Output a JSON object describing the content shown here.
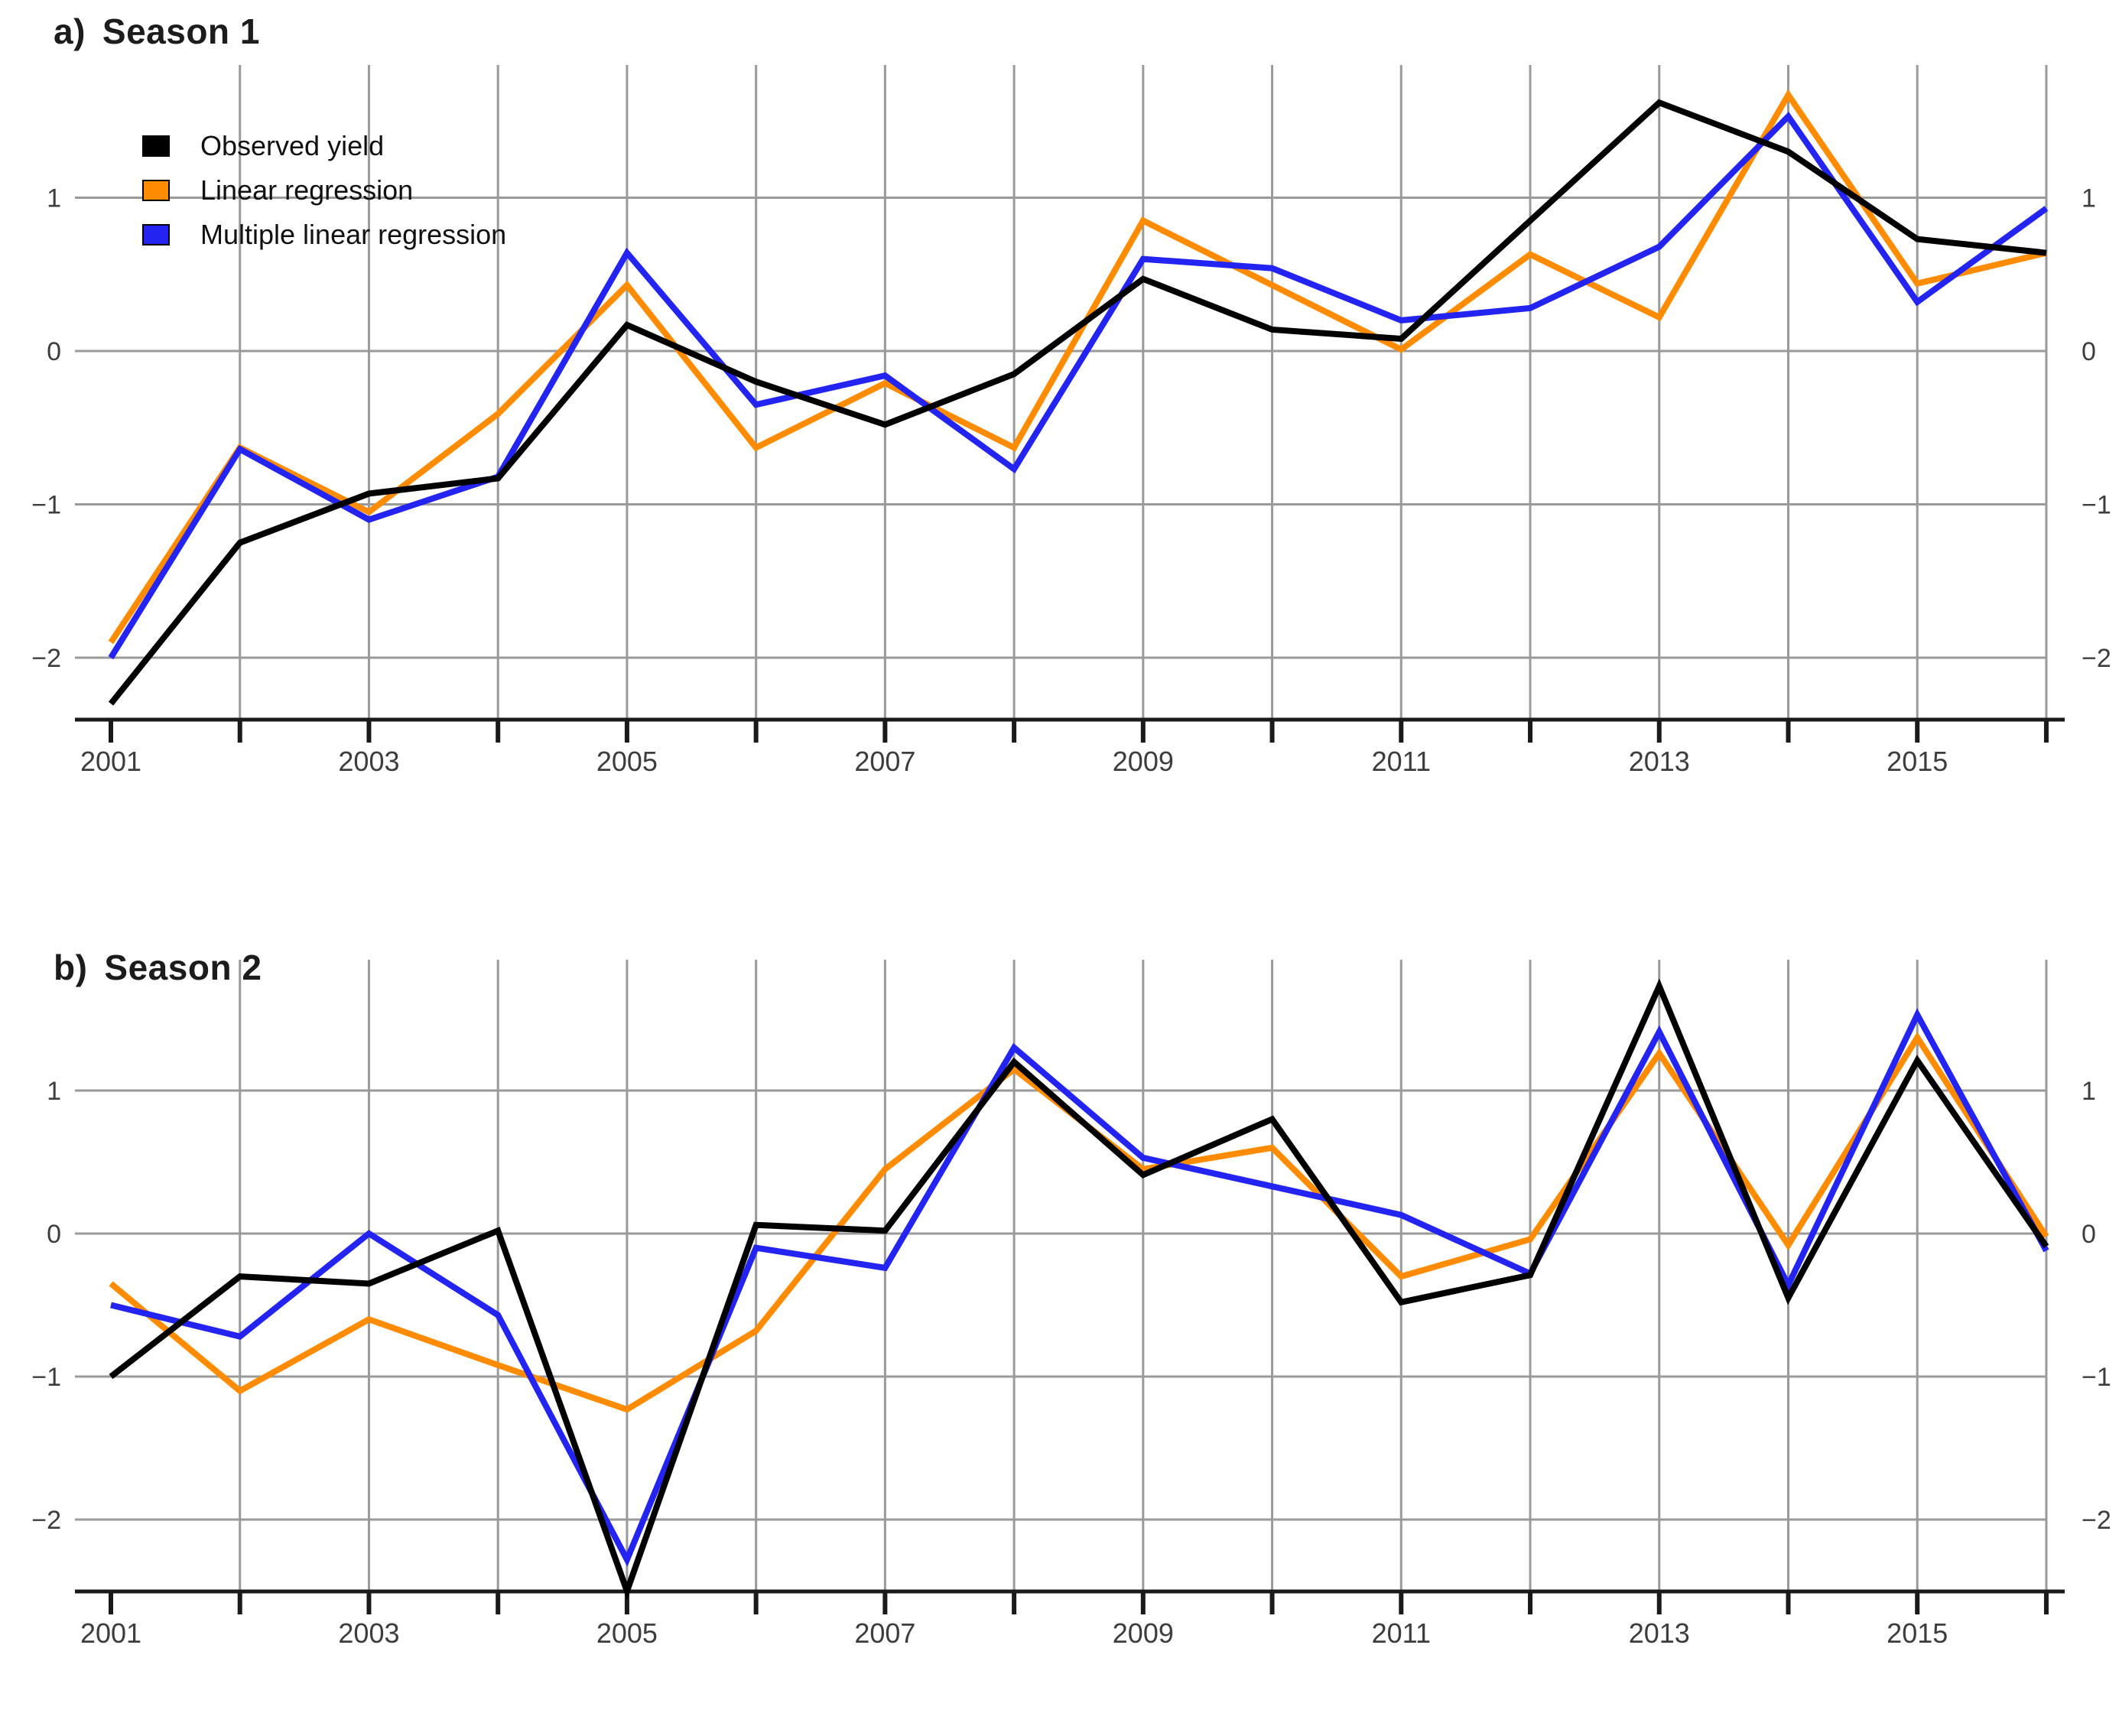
{
  "figure": {
    "background": "#ffffff",
    "colors": {
      "observed": "#000000",
      "linear": "#ff8c00",
      "multiple": "#2424f2",
      "grid": "#9a9a9a",
      "axis": "#1a1a1a",
      "tick_label": "#3d3d3d"
    },
    "legend": {
      "position": "top-left-of-first-chart",
      "items": [
        {
          "label": "Observed yield",
          "color_key": "observed"
        },
        {
          "label": "Linear regression",
          "color_key": "linear"
        },
        {
          "label": "Multiple linear regression",
          "color_key": "multiple"
        }
      ]
    }
  },
  "chart_data": [
    {
      "type": "line",
      "title_prefix": "a)",
      "title_text": "Season 1",
      "xlabel": "",
      "ylabel": "",
      "x": [
        2001,
        2002,
        2003,
        2004,
        2005,
        2006,
        2007,
        2008,
        2009,
        2010,
        2011,
        2012,
        2013,
        2014,
        2015,
        2016
      ],
      "xtick_labels": [
        "2001",
        "2003",
        "2005",
        "2007",
        "2009",
        "2011",
        "2013",
        "2015"
      ],
      "ytick_values": [
        1,
        0,
        -1,
        -2
      ],
      "ylim": [
        -2.6,
        1.9
      ],
      "grid": true,
      "legend_shown": true,
      "series": [
        {
          "name": "Observed yield",
          "color_key": "observed",
          "values": [
            -2.3,
            -1.25,
            -0.93,
            -0.83,
            0.17,
            -0.2,
            -0.48,
            -0.15,
            0.47,
            0.14,
            0.08,
            0.85,
            1.62,
            1.3,
            0.73,
            0.64
          ]
        },
        {
          "name": "Linear regression",
          "color_key": "linear",
          "values": [
            -1.9,
            -0.63,
            -1.05,
            -0.41,
            0.43,
            -0.63,
            -0.21,
            -0.63,
            0.85,
            0.43,
            0.01,
            0.63,
            0.22,
            1.67,
            0.44,
            0.64
          ]
        },
        {
          "name": "Multiple linear regression",
          "color_key": "multiple",
          "values": [
            -2.0,
            -0.64,
            -1.1,
            -0.82,
            0.64,
            -0.35,
            -0.16,
            -0.77,
            0.6,
            0.54,
            0.2,
            0.28,
            0.68,
            1.53,
            0.32,
            0.93
          ]
        }
      ]
    },
    {
      "type": "line",
      "title_prefix": "b)",
      "title_text": "Season 2",
      "xlabel": "",
      "ylabel": "",
      "x": [
        2001,
        2002,
        2003,
        2004,
        2005,
        2006,
        2007,
        2008,
        2009,
        2010,
        2011,
        2012,
        2013,
        2014,
        2015,
        2016
      ],
      "xtick_labels": [
        "2001",
        "2003",
        "2005",
        "2007",
        "2009",
        "2011",
        "2013",
        "2015"
      ],
      "ytick_values": [
        1,
        0,
        -1,
        -2
      ],
      "ylim": [
        -2.6,
        1.9
      ],
      "grid": true,
      "legend_shown": false,
      "series": [
        {
          "name": "Observed yield",
          "color_key": "observed",
          "values": [
            -1.0,
            -0.3,
            -0.35,
            0.02,
            -2.5,
            0.06,
            0.02,
            1.2,
            0.41,
            0.8,
            -0.48,
            -0.29,
            1.73,
            -0.45,
            1.21,
            -0.09
          ]
        },
        {
          "name": "Linear regression",
          "color_key": "linear",
          "values": [
            -0.35,
            -1.1,
            -0.6,
            -0.92,
            -1.23,
            -0.68,
            0.45,
            1.15,
            0.45,
            0.6,
            -0.3,
            -0.04,
            1.26,
            -0.08,
            1.37,
            -0.02
          ]
        },
        {
          "name": "Multiple linear regression",
          "color_key": "multiple",
          "values": [
            -0.5,
            -0.72,
            0.0,
            -0.57,
            -2.28,
            -0.1,
            -0.24,
            1.3,
            0.53,
            0.33,
            0.13,
            -0.28,
            1.41,
            -0.36,
            1.53,
            -0.12
          ]
        }
      ]
    }
  ]
}
